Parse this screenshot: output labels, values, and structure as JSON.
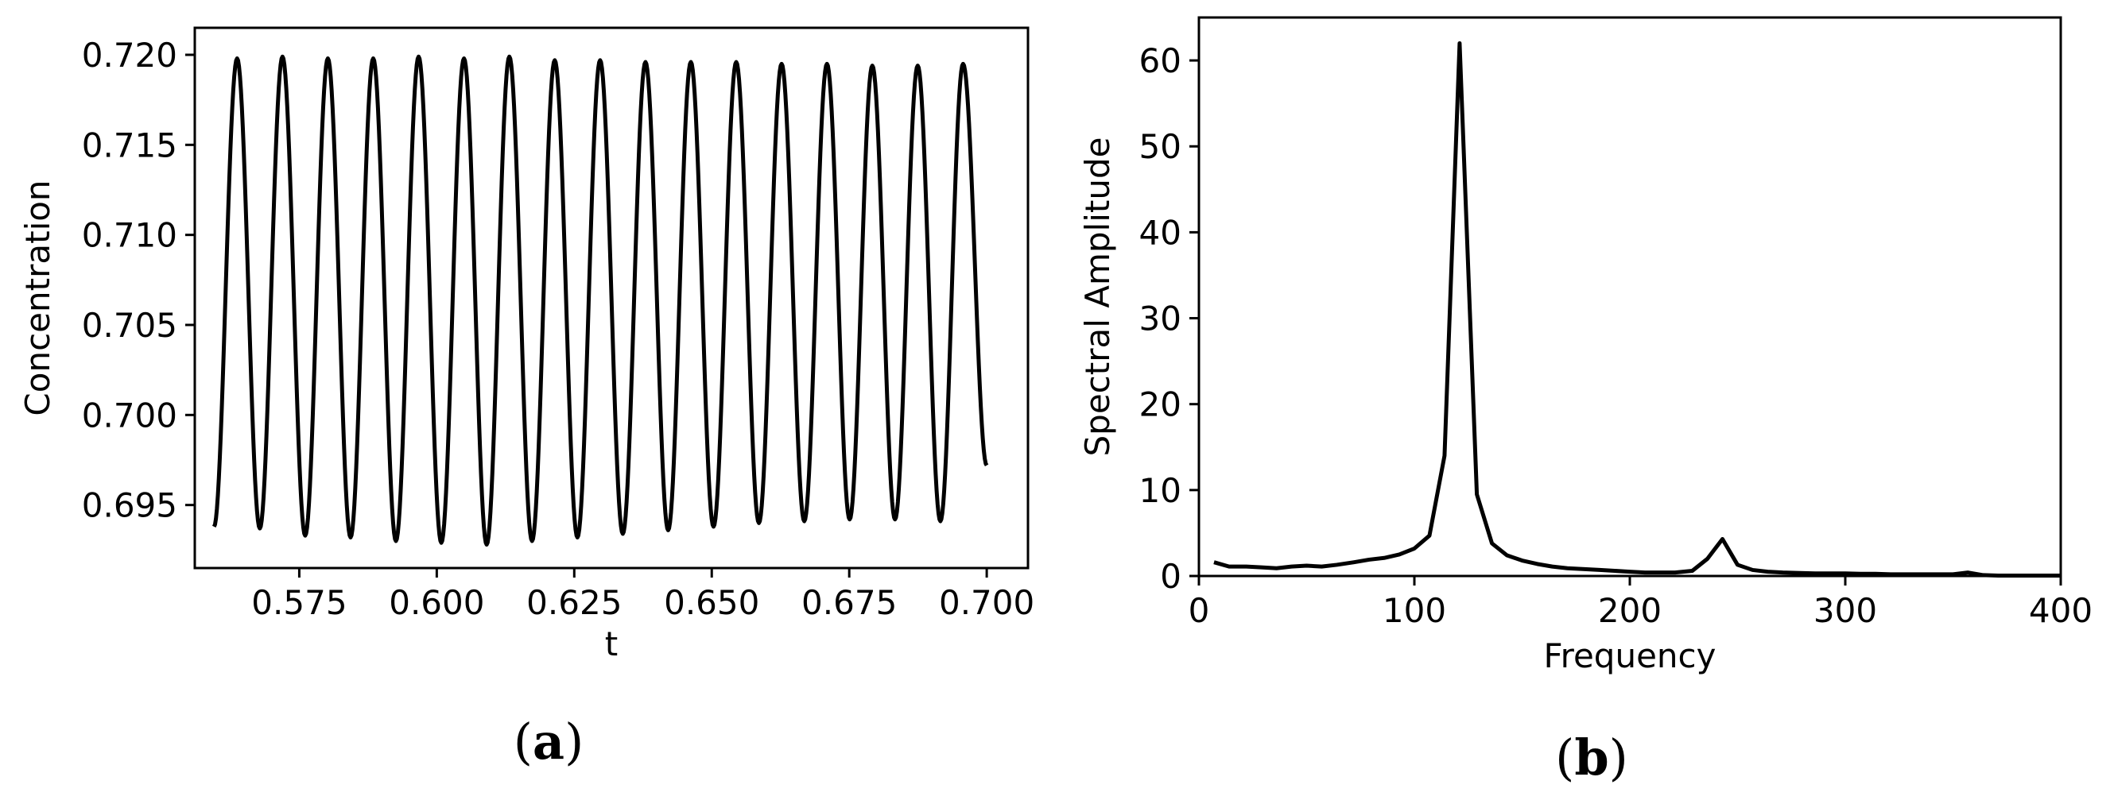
{
  "colors": {
    "line": "#000000",
    "axes": "#000000",
    "background": "#ffffff"
  },
  "chart_data": [
    {
      "type": "line",
      "panel": {
        "open": "(",
        "letter": "a",
        "close": ")"
      },
      "title": "",
      "xlabel": "t",
      "ylabel": "Concentration",
      "xlim": [
        0.556,
        0.7075
      ],
      "ylim": [
        0.6915,
        0.7215
      ],
      "grid": false,
      "xticks": [
        0.575,
        0.6,
        0.625,
        0.65,
        0.675,
        0.7
      ],
      "xtick_labels": [
        "0.575",
        "0.600",
        "0.625",
        "0.650",
        "0.675",
        "0.700"
      ],
      "yticks": [
        0.695,
        0.7,
        0.705,
        0.71,
        0.715,
        0.72
      ],
      "ytick_labels": [
        "0.695",
        "0.700",
        "0.705",
        "0.710",
        "0.715",
        "0.720"
      ],
      "series": [
        {
          "style": "oscillation",
          "x_start": 0.5595,
          "x_end": 0.7,
          "period": 0.00825,
          "first_peak_x": 0.5637,
          "peak_y": [
            0.7198,
            0.7199,
            0.7198,
            0.7198,
            0.7199,
            0.7198,
            0.7199,
            0.7197,
            0.7197,
            0.7196,
            0.7196,
            0.7196,
            0.7195,
            0.7195,
            0.7194,
            0.7194,
            0.7195
          ],
          "trough_y": [
            0.6937,
            0.6933,
            0.6932,
            0.693,
            0.6929,
            0.6928,
            0.693,
            0.6932,
            0.6934,
            0.6936,
            0.6938,
            0.694,
            0.6941,
            0.6942,
            0.6942,
            0.6941
          ],
          "start_y": 0.6938,
          "end_y": 0.6972
        }
      ]
    },
    {
      "type": "line",
      "panel": {
        "open": "(",
        "letter": "b",
        "close": ")"
      },
      "title": "",
      "xlabel": "Frequency",
      "ylabel": "Spectral Amplitude",
      "xlim": [
        0,
        400
      ],
      "ylim": [
        0,
        65
      ],
      "grid": false,
      "xticks": [
        0,
        100,
        200,
        300,
        400
      ],
      "xtick_labels": [
        "0",
        "100",
        "200",
        "300",
        "400"
      ],
      "yticks": [
        0,
        10,
        20,
        30,
        40,
        50,
        60
      ],
      "ytick_labels": [
        "0",
        "10",
        "20",
        "30",
        "40",
        "50",
        "60"
      ],
      "series": [
        {
          "x": [
            7,
            14,
            22,
            29,
            36,
            43,
            50,
            57,
            64,
            72,
            79,
            86,
            93,
            100,
            107,
            114,
            121,
            129,
            136,
            143,
            150,
            157,
            164,
            171,
            179,
            186,
            193,
            200,
            207,
            214,
            221,
            229,
            236,
            243,
            250,
            257,
            264,
            271,
            279,
            286,
            293,
            300,
            307,
            314,
            321,
            329,
            336,
            343,
            350,
            357,
            364,
            371,
            379,
            386,
            393,
            400
          ],
          "y": [
            1.6,
            1.1,
            1.1,
            1.0,
            0.9,
            1.1,
            1.2,
            1.1,
            1.3,
            1.6,
            1.9,
            2.1,
            2.5,
            3.2,
            4.7,
            14.0,
            62.0,
            9.5,
            3.8,
            2.4,
            1.8,
            1.4,
            1.1,
            0.9,
            0.8,
            0.7,
            0.6,
            0.5,
            0.4,
            0.4,
            0.4,
            0.6,
            2.0,
            4.3,
            1.3,
            0.7,
            0.5,
            0.4,
            0.35,
            0.3,
            0.3,
            0.3,
            0.25,
            0.25,
            0.2,
            0.2,
            0.2,
            0.2,
            0.2,
            0.4,
            0.1,
            0.05,
            0.05,
            0.05,
            0.05,
            0.05
          ]
        }
      ]
    }
  ]
}
